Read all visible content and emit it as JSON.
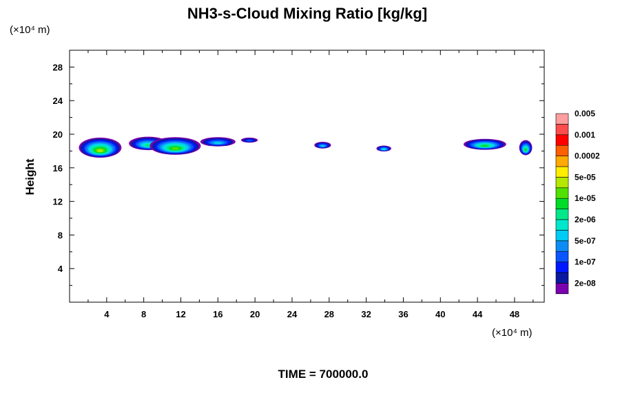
{
  "chart_data": {
    "type": "heatmap",
    "title": "NH3-s-Cloud Mixing Ratio [kg/kg]",
    "ylabel": "Height",
    "x_unit": "(×10⁴ m)",
    "y_unit": "(×10⁴ m)",
    "footer": "TIME = 700000.0",
    "xlim": [
      0,
      51.2
    ],
    "ylim": [
      0,
      30
    ],
    "x_ticks": [
      "4",
      "8",
      "12",
      "16",
      "20",
      "24",
      "28",
      "32",
      "36",
      "40",
      "44",
      "48"
    ],
    "y_ticks": [
      "4",
      "8",
      "12",
      "16",
      "20",
      "24",
      "28"
    ],
    "colorbar": {
      "colors": [
        "#7a00b0",
        "#0a1aa0",
        "#0018ff",
        "#0a55ff",
        "#0e8cf5",
        "#00ccf5",
        "#00e8cc",
        "#00e88a",
        "#00dc28",
        "#52e000",
        "#b4e800",
        "#ffee00",
        "#ffaa00",
        "#ff5f00",
        "#ff0000",
        "#ff4c4c",
        "#ff9e9e"
      ],
      "labels": [
        "2e-08",
        "1e-07",
        "5e-07",
        "2e-06",
        "1e-05",
        "5e-05",
        "0.0002",
        "0.001",
        "0.005"
      ]
    },
    "cloud_regions": [
      {
        "x_center": 3.3,
        "y_center": 18.4,
        "x_width": 4.6,
        "y_height": 2.4,
        "peak_level": 10
      },
      {
        "x_center": 8.5,
        "y_center": 18.9,
        "x_width": 4.2,
        "y_height": 1.6,
        "peak_level": 7
      },
      {
        "x_center": 11.4,
        "y_center": 18.6,
        "x_width": 5.5,
        "y_height": 2.1,
        "peak_level": 9
      },
      {
        "x_center": 16.0,
        "y_center": 19.1,
        "x_width": 3.8,
        "y_height": 1.1,
        "peak_level": 5
      },
      {
        "x_center": 19.4,
        "y_center": 19.3,
        "x_width": 1.8,
        "y_height": 0.6,
        "peak_level": 3
      },
      {
        "x_center": 27.3,
        "y_center": 18.7,
        "x_width": 1.8,
        "y_height": 0.8,
        "peak_level": 5
      },
      {
        "x_center": 33.9,
        "y_center": 18.3,
        "x_width": 1.6,
        "y_height": 0.7,
        "peak_level": 6
      },
      {
        "x_center": 44.8,
        "y_center": 18.8,
        "x_width": 4.6,
        "y_height": 1.3,
        "peak_level": 8
      },
      {
        "x_center": 49.2,
        "y_center": 18.4,
        "x_width": 1.4,
        "y_height": 1.8,
        "peak_level": 8
      }
    ]
  }
}
